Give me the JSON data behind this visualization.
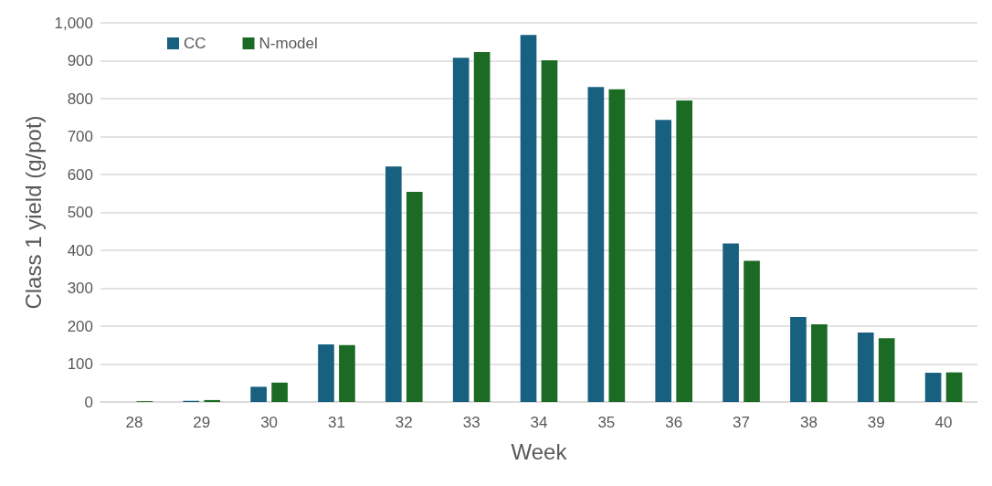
{
  "chart_data": {
    "type": "bar",
    "xlabel": "Week",
    "ylabel": "Class 1 yield (g/pot)",
    "categories": [
      "28",
      "29",
      "30",
      "31",
      "32",
      "33",
      "34",
      "35",
      "36",
      "37",
      "38",
      "39",
      "40"
    ],
    "series": [
      {
        "name": "CC",
        "color": "#17607f",
        "values": [
          null,
          3,
          40,
          152,
          621,
          908,
          968,
          831,
          744,
          418,
          224,
          183,
          77
        ]
      },
      {
        "name": "N-model",
        "color": "#1b6b24",
        "values": [
          2,
          5,
          51,
          150,
          554,
          923,
          901,
          825,
          795,
          372,
          205,
          168,
          78
        ]
      }
    ],
    "ylim": [
      0,
      1000
    ],
    "yticks": [
      0,
      100,
      200,
      300,
      400,
      500,
      600,
      700,
      800,
      900,
      {
        "value": 1000,
        "label": "1,000"
      }
    ],
    "grid": "y",
    "legend": "top left"
  }
}
